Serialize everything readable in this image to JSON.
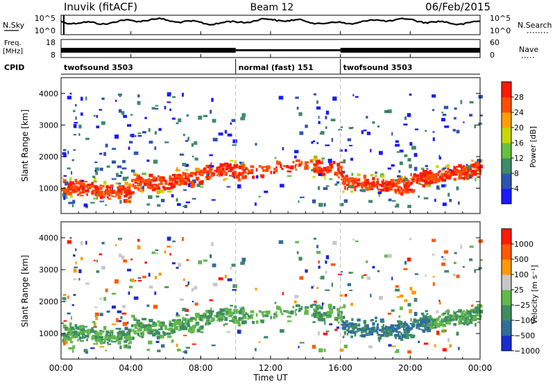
{
  "header": {
    "station": "Inuvik (fitACF)",
    "beam": "Beam 12",
    "date": "06/Feb/2015"
  },
  "chart_data": {
    "type": "heatmap",
    "x_axis": {
      "label": "Time UT",
      "ticks": [
        "00:00",
        "04:00",
        "08:00",
        "12:00",
        "16:00",
        "20:00",
        "00:00"
      ],
      "range_hours": [
        0,
        24
      ]
    },
    "noise_panel": {
      "left_label": "N.Sky",
      "left_ticks": [
        "10^5",
        "10^0"
      ],
      "right_label": "N.Search",
      "right_ticks": [
        "10^5",
        "10^0"
      ]
    },
    "freq_panel": {
      "left_label": "Freq.",
      "left_unit": "[MHz]",
      "left_ticks": [
        "18",
        "8"
      ],
      "right_label": "Nave",
      "right_ticks": [
        "60",
        "0"
      ]
    },
    "cpid": {
      "label": "CPID",
      "segments": [
        {
          "label": "twofsound 3503",
          "start_h": 0,
          "end_h": 10
        },
        {
          "label": "normal (fast) 151",
          "start_h": 10,
          "end_h": 16
        },
        {
          "label": "twofsound 3503",
          "start_h": 16,
          "end_h": 24
        }
      ]
    },
    "range_axis": {
      "label": "Slant Range [km]",
      "ticks": [
        "1000",
        "2000",
        "3000",
        "4000"
      ],
      "ylim": [
        200,
        4500
      ]
    },
    "power_panel": {
      "colorbar_label": "Power [dB]",
      "colorbar_ticks": [
        "4",
        "8",
        "12",
        "16",
        "20",
        "24",
        "28"
      ],
      "colors": [
        "#1a1aff",
        "#2e54b0",
        "#3e8a6a",
        "#66c040",
        "#c8d800",
        "#ffa000",
        "#ff5000",
        "#ff1a00"
      ]
    },
    "velocity_panel": {
      "colorbar_label": "Velocity [m s⁻¹]",
      "colorbar_ticks": [
        "1000",
        "500",
        "100",
        "25",
        "−25",
        "−100",
        "−500",
        "−1000"
      ],
      "colors": [
        "#1a2bd0",
        "#2f6e9a",
        "#3f8c62",
        "#63b84b",
        "#c8c8c8",
        "#ff9a00",
        "#ff5a00",
        "#ff1a00"
      ]
    }
  }
}
